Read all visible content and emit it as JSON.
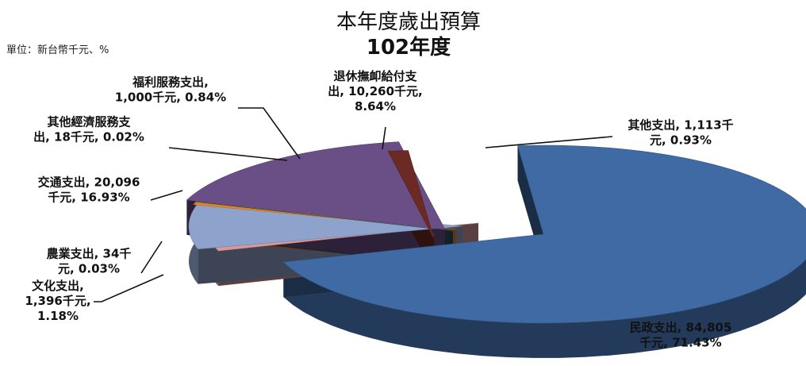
{
  "chart_data": {
    "type": "pie",
    "title": "本年度歲出預算",
    "subtitle": "102年度",
    "unit_note": "單位：新台幣千元、%",
    "slices": [
      {
        "name": "民政支出",
        "value": 84805,
        "percent": 71.43,
        "color": "#3f6aa3",
        "label_lines": [
          "民政支出, 84,805",
          "千元, 71.43%"
        ]
      },
      {
        "name": "其他支出",
        "value": 1113,
        "percent": 0.93,
        "color": "#d9989a",
        "label_lines": [
          "其他支出, 1,113千",
          "元, 0.93%"
        ]
      },
      {
        "name": "退休撫卹給付支出",
        "value": 10260,
        "percent": 8.64,
        "color": "#8ea3cc",
        "label_lines": [
          "退休撫卹給付支",
          "出, 10,260千元,",
          "8.64%"
        ]
      },
      {
        "name": "福利服務支出",
        "value": 1000,
        "percent": 0.84,
        "color": "#e0862a",
        "label_lines": [
          "福利服務支出,",
          "1,000千元, 0.84%"
        ]
      },
      {
        "name": "其他經濟服務支出",
        "value": 18,
        "percent": 0.02,
        "color": "#2a4f5c",
        "label_lines": [
          "其他經濟服務支",
          "出, 18千元, 0.02%"
        ]
      },
      {
        "name": "交通支出",
        "value": 20096,
        "percent": 16.93,
        "color": "#6a4f87",
        "label_lines": [
          "交通支出, 20,096",
          "千元, 16.93%"
        ]
      },
      {
        "name": "農業支出",
        "value": 34,
        "percent": 0.03,
        "color": "#c0463c",
        "label_lines": [
          "農業支出, 34千",
          "元, 0.03%"
        ]
      },
      {
        "name": "文化支出",
        "value": 1396,
        "percent": 1.18,
        "color": "#6b2a24",
        "label_lines": [
          "文化支出,",
          "1,396千元,",
          "1.18%"
        ]
      }
    ],
    "legend": "none",
    "style": "3d-exploded"
  }
}
